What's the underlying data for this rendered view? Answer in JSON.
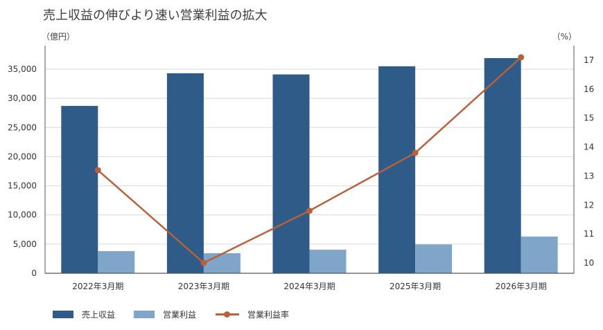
{
  "chart_data": {
    "type": "bar",
    "title": "売上収益の伸びより速い営業利益の拡大",
    "left_unit": "（億円）",
    "right_unit": "（%）",
    "categories": [
      "2022年3月期",
      "2023年3月期",
      "2024年3月期",
      "2025年3月期",
      "2026年3月期"
    ],
    "series": [
      {
        "name": "売上収益",
        "kind": "bar",
        "axis": "left",
        "color": "#2e5b87",
        "values": [
          28700,
          34300,
          34100,
          35500,
          36900
        ]
      },
      {
        "name": "営業利益",
        "kind": "bar",
        "axis": "left",
        "color": "#7fa6c9",
        "values": [
          3800,
          3450,
          4050,
          4950,
          6300
        ]
      },
      {
        "name": "営業利益率",
        "kind": "line",
        "axis": "right",
        "color": "#b8603a",
        "values": [
          13.2,
          10.0,
          11.8,
          13.8,
          17.1
        ]
      }
    ],
    "y_left": {
      "min": 0,
      "max": 35000,
      "ticks": [
        0,
        5000,
        10000,
        15000,
        20000,
        25000,
        30000,
        35000
      ],
      "tick_labels": [
        "0",
        "5,000",
        "10,000",
        "15,000",
        "20,000",
        "25,000",
        "30,000",
        "35,000"
      ]
    },
    "y_right": {
      "min": 10,
      "max": 17,
      "ticks": [
        10,
        11,
        12,
        13,
        14,
        15,
        16,
        17
      ],
      "tick_labels": [
        "10",
        "11",
        "12",
        "13",
        "14",
        "15",
        "16",
        "17"
      ]
    },
    "grid": true,
    "legend_position": "bottom-left"
  }
}
